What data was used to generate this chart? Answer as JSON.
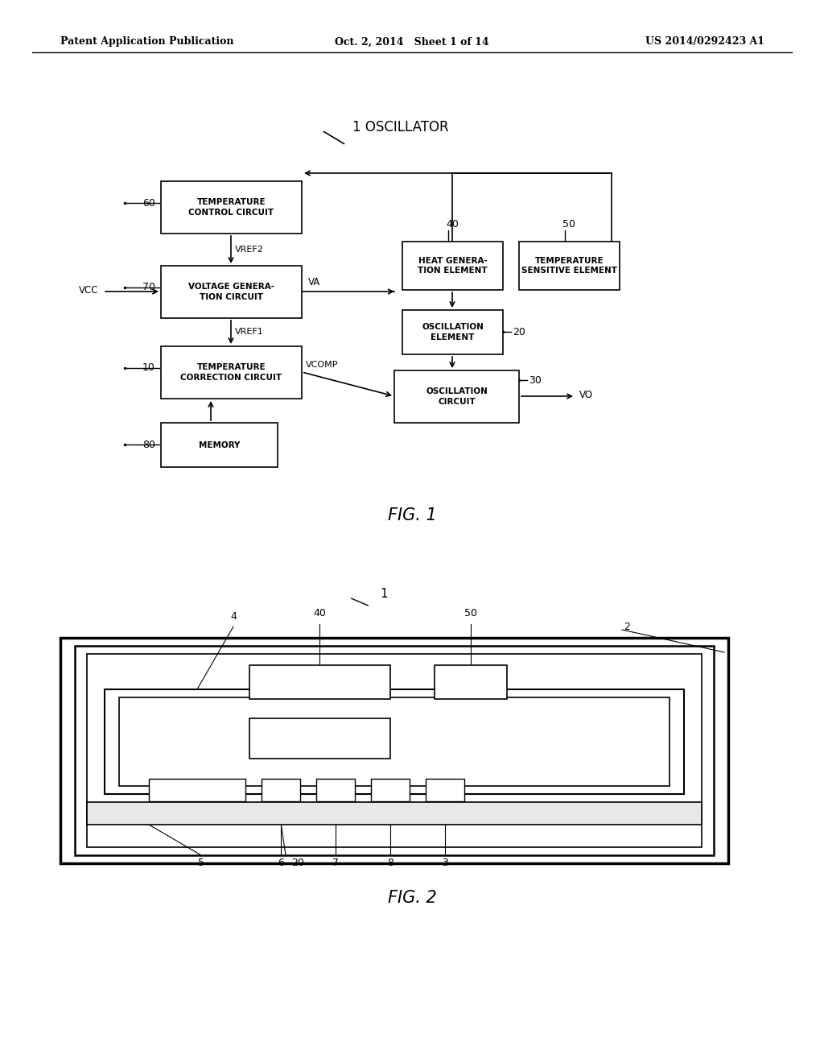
{
  "bg_color": "#ffffff",
  "header_left": "Patent Application Publication",
  "header_center": "Oct. 2, 2014   Sheet 1 of 14",
  "header_right": "US 2014/0292423 A1",
  "fig1_label": "FIG. 1",
  "fig2_label": "FIG. 2"
}
